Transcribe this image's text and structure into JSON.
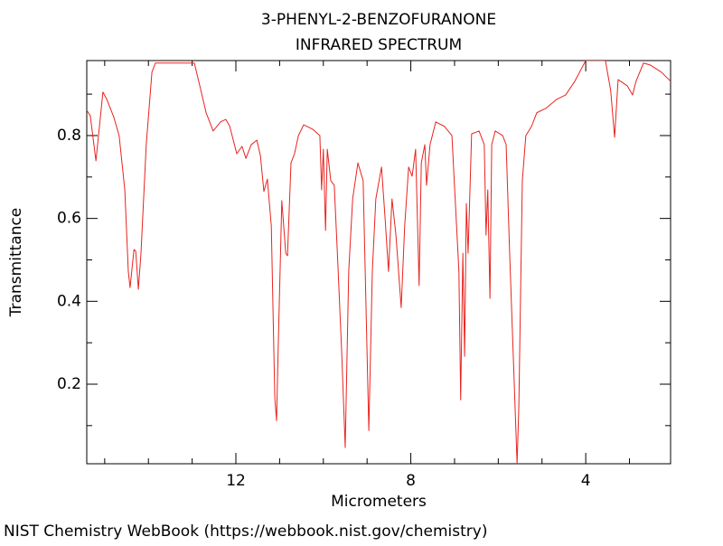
{
  "chart_data": {
    "type": "line",
    "title": "3-PHENYL-2-BENZOFURANONE",
    "subtitle": "INFRARED SPECTRUM",
    "x_label": "Micrometers",
    "y_label": "Transmittance",
    "footer": "NIST Chemistry WebBook (https://webbook.nist.gov/chemistry)",
    "xlim": [
      15.41,
      2.06
    ],
    "ylim": [
      0.008,
      0.981
    ],
    "xticks": [
      12,
      8,
      4
    ],
    "xminorticks": [
      15,
      14,
      13,
      11,
      10,
      9,
      7,
      6,
      5,
      3
    ],
    "yticks": [
      0.2,
      0.4,
      0.6,
      0.8
    ],
    "yminorticks": [
      0.1,
      0.3,
      0.5,
      0.7,
      0.9
    ],
    "grid": false,
    "series": [
      {
        "color": "#e8231f",
        "x": [
          15.41,
          15.33,
          15.2,
          15.12,
          15.04,
          14.95,
          14.79,
          14.67,
          14.54,
          14.46,
          14.42,
          14.33,
          14.29,
          14.23,
          14.17,
          14.05,
          13.92,
          13.84,
          12.95,
          12.85,
          12.68,
          12.52,
          12.35,
          12.23,
          12.14,
          11.98,
          11.86,
          11.77,
          11.65,
          11.52,
          11.44,
          11.36,
          11.28,
          11.19,
          11.11,
          11.07,
          11.03,
          10.95,
          10.86,
          10.82,
          10.74,
          10.66,
          10.57,
          10.45,
          10.24,
          10.08,
          10.04,
          10.0,
          9.95,
          9.91,
          9.83,
          9.75,
          9.67,
          9.58,
          9.5,
          9.42,
          9.33,
          9.21,
          9.09,
          8.96,
          8.88,
          8.8,
          8.67,
          8.59,
          8.51,
          8.43,
          8.34,
          8.22,
          8.14,
          8.05,
          7.97,
          7.89,
          7.81,
          7.76,
          7.68,
          7.64,
          7.56,
          7.43,
          7.23,
          7.06,
          6.9,
          6.86,
          6.81,
          6.77,
          6.73,
          6.69,
          6.61,
          6.44,
          6.32,
          6.28,
          6.24,
          6.19,
          6.15,
          6.07,
          5.9,
          5.82,
          5.74,
          5.57,
          5.53,
          5.45,
          5.37,
          5.24,
          5.12,
          4.91,
          4.67,
          4.46,
          4.25,
          4.0,
          3.55,
          3.43,
          3.34,
          3.26,
          3.05,
          2.93,
          2.85,
          2.68,
          2.52,
          2.27,
          2.06
        ],
        "values": [
          0.861,
          0.848,
          0.739,
          0.822,
          0.905,
          0.887,
          0.844,
          0.8,
          0.669,
          0.472,
          0.433,
          0.525,
          0.521,
          0.429,
          0.516,
          0.778,
          0.953,
          0.975,
          0.975,
          0.931,
          0.855,
          0.811,
          0.833,
          0.839,
          0.822,
          0.756,
          0.774,
          0.745,
          0.778,
          0.789,
          0.752,
          0.665,
          0.695,
          0.582,
          0.167,
          0.112,
          0.298,
          0.643,
          0.516,
          0.51,
          0.734,
          0.756,
          0.8,
          0.826,
          0.815,
          0.8,
          0.669,
          0.767,
          0.571,
          0.767,
          0.691,
          0.68,
          0.494,
          0.276,
          0.047,
          0.472,
          0.647,
          0.734,
          0.691,
          0.088,
          0.472,
          0.647,
          0.724,
          0.603,
          0.472,
          0.647,
          0.56,
          0.385,
          0.582,
          0.724,
          0.702,
          0.767,
          0.438,
          0.734,
          0.778,
          0.68,
          0.778,
          0.833,
          0.822,
          0.8,
          0.472,
          0.162,
          0.516,
          0.267,
          0.636,
          0.516,
          0.804,
          0.811,
          0.778,
          0.56,
          0.669,
          0.407,
          0.778,
          0.811,
          0.8,
          0.778,
          0.516,
          0.008,
          0.145,
          0.691,
          0.8,
          0.822,
          0.855,
          0.866,
          0.887,
          0.898,
          0.931,
          0.981,
          0.981,
          0.909,
          0.796,
          0.935,
          0.92,
          0.898,
          0.931,
          0.975,
          0.97,
          0.953,
          0.931
        ]
      }
    ]
  }
}
